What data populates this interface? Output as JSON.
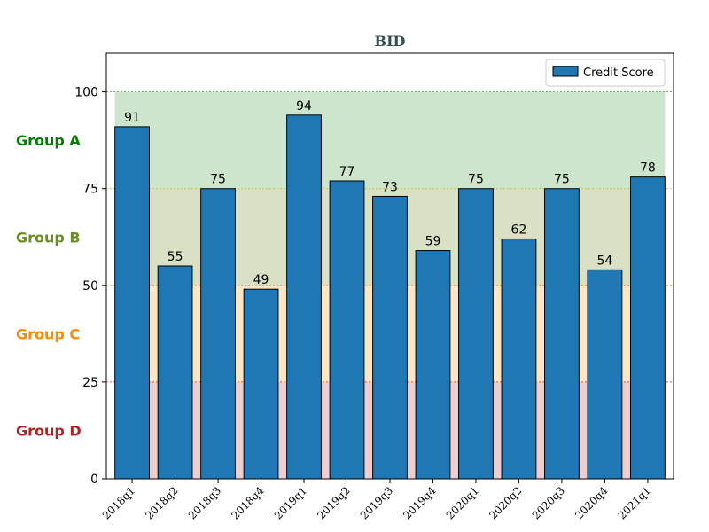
{
  "chart_data": {
    "type": "bar",
    "title": "BID",
    "title_color": "#2f4f4f",
    "xlabel": "",
    "ylabel": "",
    "categories": [
      "2018q1",
      "2018q2",
      "2018q3",
      "2018q4",
      "2019q1",
      "2019q2",
      "2019q3",
      "2019q4",
      "2020q1",
      "2020q2",
      "2020q3",
      "2020q4",
      "2021q1"
    ],
    "series": [
      {
        "name": "Credit Score",
        "color": "#1f77b4",
        "values": [
          91,
          55,
          75,
          49,
          94,
          77,
          73,
          59,
          75,
          62,
          75,
          54,
          78
        ]
      }
    ],
    "ylim": [
      0,
      110
    ],
    "yticks": [
      0,
      25,
      50,
      75,
      100
    ],
    "grid": false,
    "legend_position": "top-right",
    "bands": [
      {
        "label": "Group A",
        "from": 75,
        "to": 100,
        "fill": "#cde5cd",
        "line_color": "#2ca02c",
        "label_color": "#008000"
      },
      {
        "label": "Group B",
        "from": 50,
        "to": 75,
        "fill": "#d9e0c4",
        "line_color": "#bcbd22",
        "label_color": "#6b8e23"
      },
      {
        "label": "Group C",
        "from": 25,
        "to": 50,
        "fill": "#fde6c6",
        "line_color": "#ff7f0e",
        "label_color": "#ff8c00"
      },
      {
        "label": "Group D",
        "from": 0,
        "to": 25,
        "fill": "#edcfd2",
        "line_color": "#d62728",
        "label_color": "#b22222"
      }
    ]
  }
}
